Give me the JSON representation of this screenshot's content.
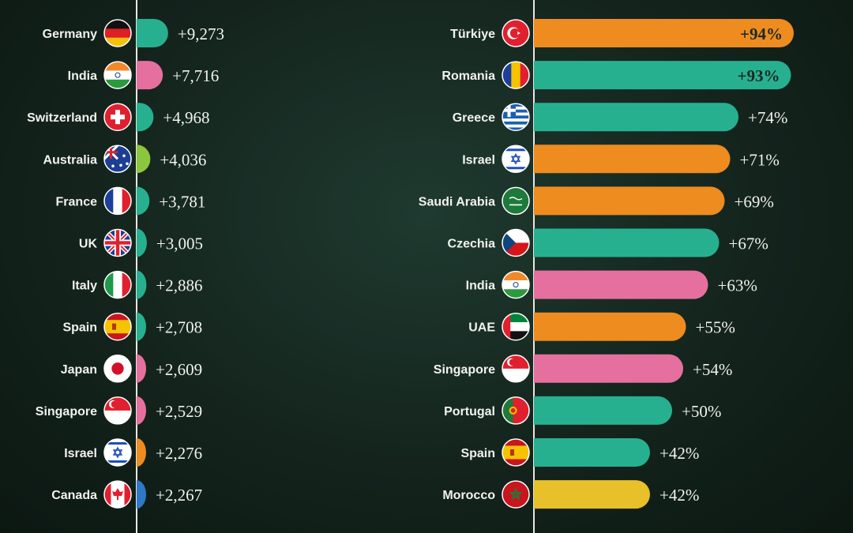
{
  "colors": {
    "teal": "#27b08f",
    "orange": "#ee8c1f",
    "pink": "#e5709f",
    "green": "#8cc63f",
    "blue": "#2e78c8",
    "yellow": "#e7c02a",
    "text": "#f2f2ee"
  },
  "chart_data": [
    {
      "type": "bar",
      "orientation": "horizontal",
      "categories": [
        "Germany",
        "India",
        "Switzerland",
        "Australia",
        "France",
        "UK",
        "Italy",
        "Spain",
        "Japan",
        "Singapore",
        "Israel",
        "Canada"
      ],
      "values": [
        9273,
        7716,
        4968,
        4036,
        3781,
        3005,
        2886,
        2708,
        2609,
        2529,
        2276,
        2267
      ],
      "labels": [
        "+9,273",
        "+7,716",
        "+4,968",
        "+4,036",
        "+3,781",
        "+3,005",
        "+2,886",
        "+2,708",
        "+2,609",
        "+2,529",
        "+2,276",
        "+2,267"
      ],
      "bar_colors": [
        "teal",
        "pink",
        "teal",
        "green",
        "teal",
        "teal",
        "teal",
        "teal",
        "pink",
        "pink",
        "orange",
        "blue"
      ],
      "flags": [
        "germany-flag",
        "india-flag",
        "switzerland-flag",
        "australia-flag",
        "france-flag",
        "uk-flag",
        "italy-flag",
        "spain-flag",
        "japan-flag",
        "singapore-flag",
        "israel-flag",
        "canada-flag"
      ]
    },
    {
      "type": "bar",
      "orientation": "horizontal",
      "categories": [
        "Türkiye",
        "Romania",
        "Greece",
        "Israel",
        "Saudi Arabia",
        "Czechia",
        "India",
        "UAE",
        "Singapore",
        "Portugal",
        "Spain",
        "Morocco"
      ],
      "values": [
        94,
        93,
        74,
        71,
        69,
        67,
        63,
        55,
        54,
        50,
        42,
        42
      ],
      "labels": [
        "+94%",
        "+93%",
        "+74%",
        "+71%",
        "+69%",
        "+67%",
        "+63%",
        "+55%",
        "+54%",
        "+50%",
        "+42%",
        "+42%"
      ],
      "bar_colors": [
        "orange",
        "teal",
        "teal",
        "orange",
        "orange",
        "teal",
        "pink",
        "orange",
        "pink",
        "teal",
        "teal",
        "yellow"
      ],
      "flags": [
        "turkiye-flag",
        "romania-flag",
        "greece-flag",
        "israel-flag",
        "saudi-arabia-flag",
        "czechia-flag",
        "india-flag",
        "uae-flag",
        "singapore-flag",
        "portugal-flag",
        "spain-flag",
        "morocco-flag"
      ]
    }
  ]
}
